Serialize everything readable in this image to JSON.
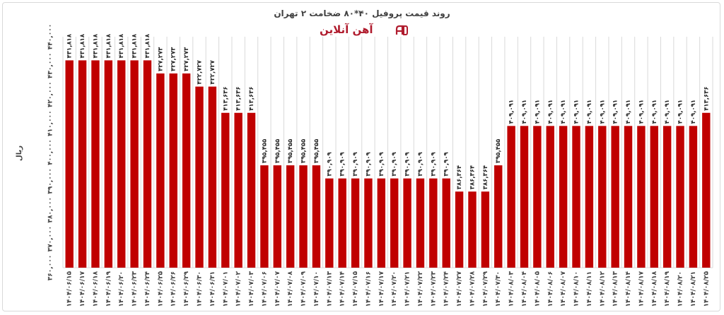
{
  "chart_data": {
    "type": "bar",
    "title": "روند قیمت پروفیل ۴۰*۸۰ ضخامت ۲ تهران",
    "brand": "آهن آنلاین",
    "ylabel": "ریال",
    "xlabel": "",
    "ylim": [
      360000,
      440000
    ],
    "yticks": [
      360000,
      370000,
      380000,
      390000,
      400000,
      410000,
      420000,
      430000,
      440000
    ],
    "ytick_labels": [
      "۳۶۰,۰۰۰",
      "۳۷۰,۰۰۰",
      "۳۸۰,۰۰۰",
      "۳۹۰,۰۰۰",
      "۴۰۰,۰۰۰",
      "۴۱۰,۰۰۰",
      "۴۲۰,۰۰۰",
      "۴۳۰,۰۰۰",
      "۴۴۰,۰۰۰"
    ],
    "grid": "vertical",
    "colors": {
      "bar": "#c00000",
      "grid": "#d9d9d9"
    },
    "categories": [
      "۱۴۰۴/۰۶/۱۵",
      "۱۴۰۴/۰۶/۱۷",
      "۱۴۰۴/۰۶/۱۸",
      "۱۴۰۴/۰۶/۱۹",
      "۱۴۰۴/۰۶/۲۰",
      "۱۴۰۴/۰۶/۲۳",
      "۱۴۰۴/۰۶/۲۴",
      "۱۴۰۴/۰۶/۲۵",
      "۱۴۰۴/۰۶/۲۶",
      "۱۴۰۴/۰۶/۲۹",
      "۱۴۰۴/۰۶/۳۰",
      "۱۴۰۴/۰۶/۳۱",
      "۱۴۰۴/۰۷/۰۱",
      "۱۴۰۴/۰۷/۰۲",
      "۱۴۰۴/۰۷/۰۳",
      "۱۴۰۴/۰۷/۰۶",
      "۱۴۰۴/۰۷/۰۷",
      "۱۴۰۴/۰۷/۰۸",
      "۱۴۰۴/۰۷/۰۹",
      "۱۴۰۴/۰۷/۱۰",
      "۱۴۰۴/۰۷/۱۳",
      "۱۴۰۴/۰۷/۱۴",
      "۱۴۰۴/۰۷/۱۵",
      "۱۴۰۴/۰۷/۱۶",
      "۱۴۰۴/۰۷/۱۷",
      "۱۴۰۴/۰۷/۲۰",
      "۱۴۰۴/۰۷/۲۱",
      "۱۴۰۴/۰۷/۲۲",
      "۱۴۰۴/۰۷/۲۳",
      "۱۴۰۴/۰۷/۲۴",
      "۱۴۰۴/۰۷/۲۷",
      "۱۴۰۴/۰۷/۲۸",
      "۱۴۰۴/۰۷/۲۹",
      "۱۴۰۴/۰۷/۳۰",
      "۱۴۰۴/۰۸/۰۳",
      "۱۴۰۴/۰۸/۰۴",
      "۱۴۰۴/۰۸/۰۵",
      "۱۴۰۴/۰۸/۰۶",
      "۱۴۰۴/۰۸/۰۷",
      "۱۴۰۴/۰۸/۱۰",
      "۱۴۰۴/۰۸/۱۱",
      "۱۴۰۴/۰۸/۱۲",
      "۱۴۰۴/۰۸/۱۳",
      "۱۴۰۴/۰۸/۱۴",
      "۱۴۰۴/۰۸/۱۷",
      "۱۴۰۴/۰۸/۱۸",
      "۱۴۰۴/۰۸/۱۹",
      "۱۴۰۴/۰۸/۲۰",
      "۱۴۰۴/۰۸/۲۱",
      "۱۴۰۴/۰۸/۲۵"
    ],
    "values": [
      431818,
      431818,
      431818,
      431818,
      431818,
      431818,
      431818,
      427273,
      427273,
      427273,
      422727,
      422727,
      413636,
      413636,
      413636,
      395455,
      395455,
      395455,
      395455,
      395455,
      390909,
      390909,
      390909,
      390909,
      390909,
      390909,
      390909,
      390909,
      390909,
      390909,
      386364,
      386364,
      386364,
      395455,
      409091,
      409091,
      409091,
      409091,
      409091,
      409091,
      409091,
      409091,
      409091,
      409091,
      409091,
      409091,
      409091,
      409091,
      409091,
      413636
    ],
    "value_labels": [
      "۴۳۱,۸۱۸",
      "۴۳۱,۸۱۸",
      "۴۳۱,۸۱۸",
      "۴۳۱,۸۱۸",
      "۴۳۱,۸۱۸",
      "۴۳۱,۸۱۸",
      "۴۳۱,۸۱۸",
      "۴۲۷,۲۷۳",
      "۴۲۷,۲۷۳",
      "۴۲۷,۲۷۳",
      "۴۲۲,۷۲۷",
      "۴۲۲,۷۲۷",
      "۴۱۳,۶۳۶",
      "۴۱۳,۶۳۶",
      "۴۱۳,۶۳۶",
      "۳۹۵,۴۵۵",
      "۳۹۵,۴۵۵",
      "۳۹۵,۴۵۵",
      "۳۹۵,۴۵۵",
      "۳۹۵,۴۵۵",
      "۳۹۰,۹۰۹",
      "۳۹۰,۹۰۹",
      "۳۹۰,۹۰۹",
      "۳۹۰,۹۰۹",
      "۳۹۰,۹۰۹",
      "۳۹۰,۹۰۹",
      "۳۹۰,۹۰۹",
      "۳۹۰,۹۰۹",
      "۳۹۰,۹۰۹",
      "۳۹۰,۹۰۹",
      "۳۸۶,۳۶۴",
      "۳۸۶,۳۶۴",
      "۳۸۶,۳۶۴",
      "۳۹۵,۴۵۵",
      "۴۰۹,۰۹۱",
      "۴۰۹,۰۹۱",
      "۴۰۹,۰۹۱",
      "۴۰۹,۰۹۱",
      "۴۰۹,۰۹۱",
      "۴۰۹,۰۹۱",
      "۴۰۹,۰۹۱",
      "۴۰۹,۰۹۱",
      "۴۰۹,۰۹۱",
      "۴۰۹,۰۹۱",
      "۴۰۹,۰۹۱",
      "۴۰۹,۰۹۱",
      "۴۰۹,۰۹۱",
      "۴۰۹,۰۹۱",
      "۴۰۹,۰۹۱",
      "۴۱۳,۶۳۶"
    ]
  }
}
